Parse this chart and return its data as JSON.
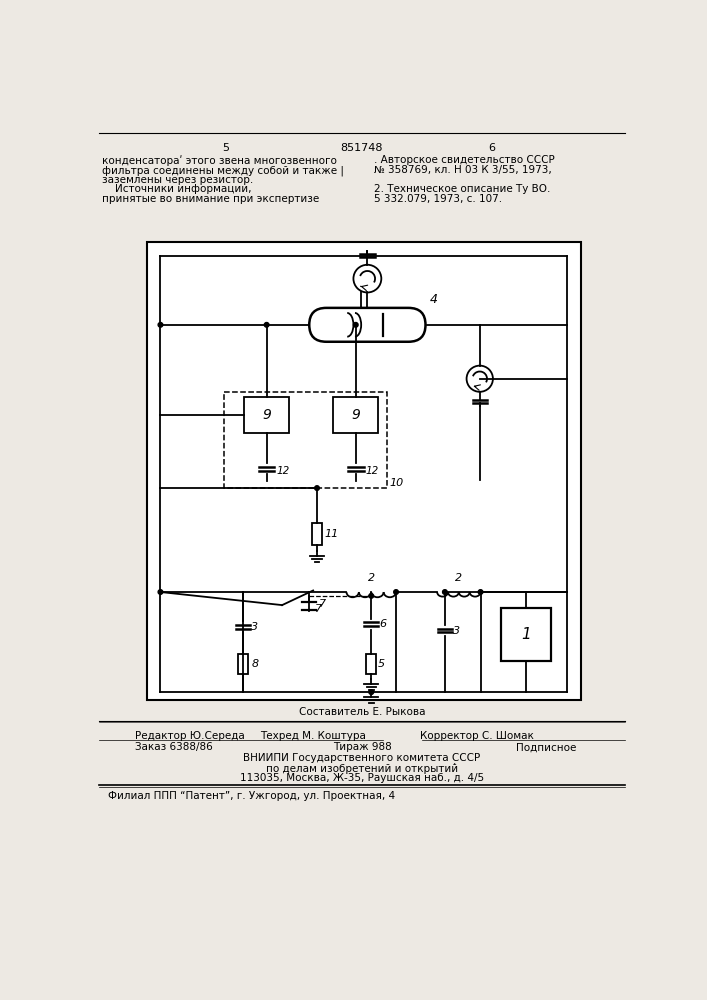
{
  "bg_color": "#ede9e3",
  "page_num_left": "5",
  "page_num_center": "851748",
  "page_num_right": "6",
  "top_left_lines": [
    "конденсатораʹ этого звена многозвенного",
    "фильтра соединены между собой и также |",
    "заземлены через резистор.",
    "    Источники информации,",
    "принятые во внимание при экспертизе"
  ],
  "top_right_lines": [
    ". Авторское свидетельство СССР",
    "№ 358769, кл. Н 03 К 3/55, 1973,",
    "",
    "2. Техническое описание Ту ВО.",
    "5 332.079, 1973, с. 107."
  ],
  "compose_line": "Составитель Е. Рыкова",
  "editor_line": "Редактор Ю.Середа",
  "techred_line": "Техред М. Коштура",
  "corrector_line": "Корректор С. Шомак",
  "order_line": "Заказ 6388/86",
  "tirazh_line": "Тираж 988",
  "podp_line": "Подписное",
  "vniip1": "ВНИИПИ Государственного комитета СССР",
  "vniip2": "по делам изобретений и открытий̀",
  "vniip3": "113035, Москва, Ж-35, Раушская наб., д. 4/5",
  "filial": "Филиал ППП “Патент”, г. Ужгород, ул. Проектная, 4"
}
